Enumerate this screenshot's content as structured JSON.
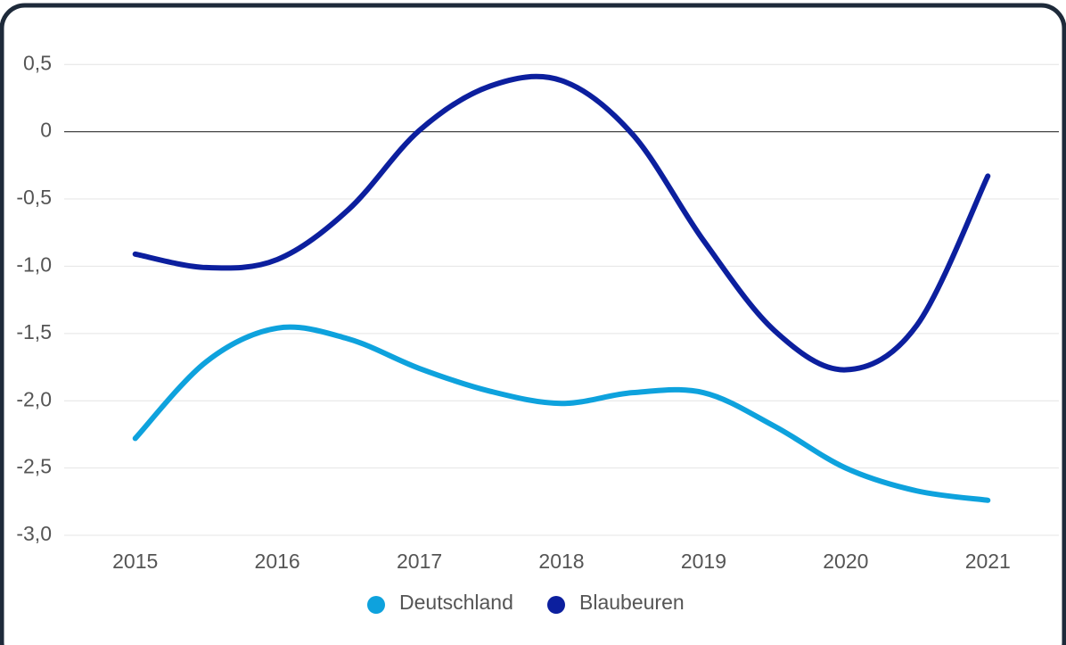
{
  "chart_data": {
    "type": "line",
    "x": [
      2015,
      2015.5,
      2016,
      2016.5,
      2017,
      2017.5,
      2018,
      2018.5,
      2019,
      2019.5,
      2020,
      2020.5,
      2021
    ],
    "series": [
      {
        "name": "Deutschland",
        "color": "#0ea2dd",
        "values": [
          -2.28,
          -1.71,
          -1.46,
          -1.54,
          -1.76,
          -1.93,
          -2.02,
          -1.94,
          -1.94,
          -2.19,
          -2.5,
          -2.67,
          -2.74
        ]
      },
      {
        "name": "Blaubeuren",
        "color": "#0c1f9e",
        "values": [
          -0.91,
          -1.01,
          -0.95,
          -0.58,
          0.01,
          0.34,
          0.38,
          -0.02,
          -0.81,
          -1.48,
          -1.77,
          -1.44,
          -0.33
        ]
      }
    ],
    "xlim": [
      2014.5,
      2021.5
    ],
    "xticks": [
      2015,
      2016,
      2017,
      2018,
      2019,
      2020,
      2021
    ],
    "ylim": [
      -3,
      0.8
    ],
    "yticks": [
      {
        "value": 0.5,
        "label": "0,5"
      },
      0,
      {
        "value": -0.5,
        "label": "-0,5"
      },
      {
        "value": -1,
        "label": "-1,0"
      },
      {
        "value": -1.5,
        "label": "-1,5"
      },
      {
        "value": -2,
        "label": "-2,0"
      },
      {
        "value": -2.5,
        "label": "-2,5"
      },
      {
        "value": -3,
        "label": "-3,0"
      }
    ],
    "grid": true,
    "legend": "bottom"
  }
}
